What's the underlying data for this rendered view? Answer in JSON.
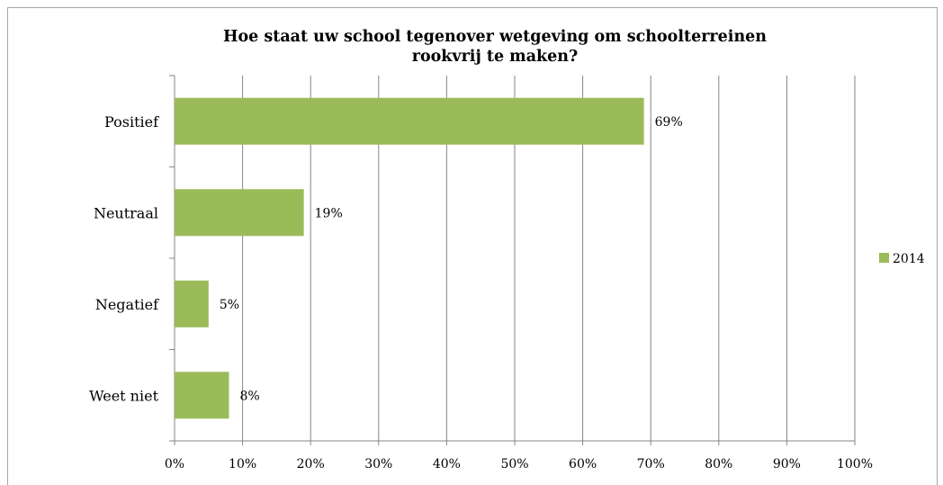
{
  "chart_data": {
    "type": "bar",
    "orientation": "horizontal",
    "title_line1": "Hoe staat uw school tegenover wetgeving om schoolterreinen",
    "title_line2": "rookvrij te maken?",
    "categories": [
      "Positief",
      "Neutraal",
      "Negatief",
      "Weet niet"
    ],
    "series": [
      {
        "name": "2014",
        "values": [
          69,
          19,
          5,
          8
        ],
        "color": "#9bbb59"
      }
    ],
    "data_labels": [
      "69%",
      "19%",
      "5%",
      "8%"
    ],
    "x_ticks": [
      "0%",
      "10%",
      "20%",
      "30%",
      "40%",
      "50%",
      "60%",
      "70%",
      "80%",
      "90%",
      "100%"
    ],
    "xlim": [
      0,
      100
    ],
    "grid": true,
    "legend_position": "right"
  }
}
